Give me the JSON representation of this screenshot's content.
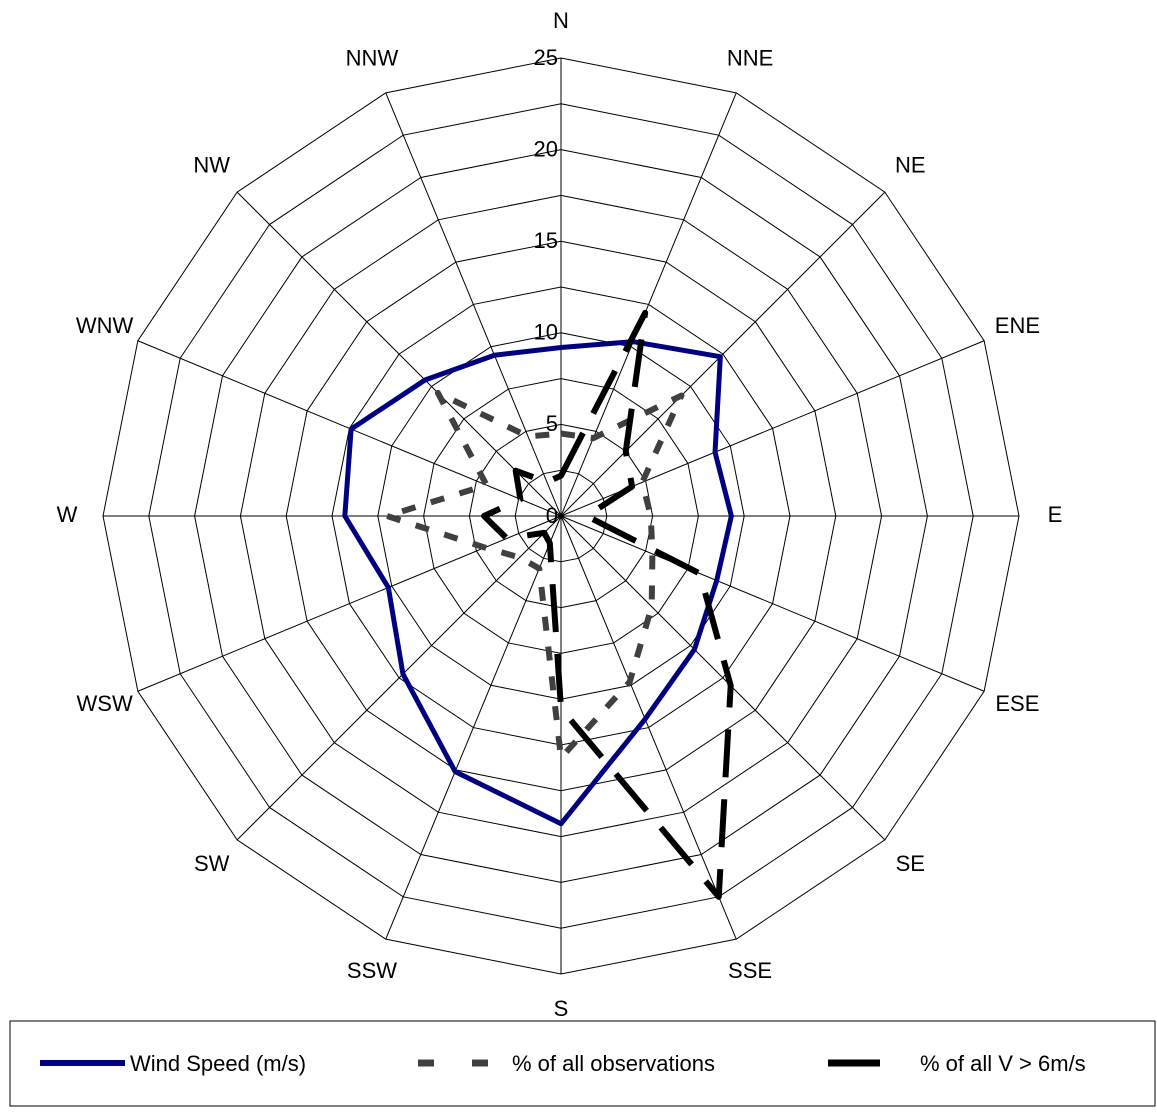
{
  "chart_data": {
    "type": "radar",
    "directions": [
      "N",
      "NNE",
      "NE",
      "ENE",
      "E",
      "ESE",
      "SE",
      "SSE",
      "S",
      "SSW",
      "SW",
      "WSW",
      "W",
      "WNW",
      "NW",
      "NNW"
    ],
    "radial_ticks": [
      "0",
      "5",
      "10",
      "15",
      "20",
      "25"
    ],
    "rlim": [
      0,
      25
    ],
    "grid": true,
    "legend_position": "bottom",
    "series": [
      {
        "name": "Wind Speed (m/s)",
        "color": "#000080",
        "style": "solid",
        "values": [
          9.2,
          10.3,
          12.3,
          9.1,
          9.3,
          9.2,
          10.3,
          12.0,
          16.8,
          15.1,
          12.2,
          10.2,
          11.8,
          12.4,
          10.5,
          9.5
        ]
      },
      {
        "name": "% of all observations",
        "color": "#404040",
        "style": "dashed",
        "values": [
          4.5,
          4.6,
          9.3,
          4.8,
          4.9,
          5.4,
          7.0,
          9.8,
          13.2,
          3.1,
          3.2,
          4.5,
          9.5,
          4.4,
          9.5,
          4.7
        ]
      },
      {
        "name": "% of all V > 6m/s",
        "color": "#000000",
        "style": "longdash",
        "values": [
          2.2,
          12.0,
          5.0,
          4.2,
          1.4,
          8.2,
          13.1,
          22.5,
          10.5,
          1.6,
          1.3,
          3.2,
          4.2,
          2.4,
          3.5,
          2.0
        ]
      }
    ],
    "legend": [
      {
        "label": "Wind Speed (m/s)"
      },
      {
        "label": "% of all observations"
      },
      {
        "label": "% of all V > 6m/s"
      }
    ]
  }
}
